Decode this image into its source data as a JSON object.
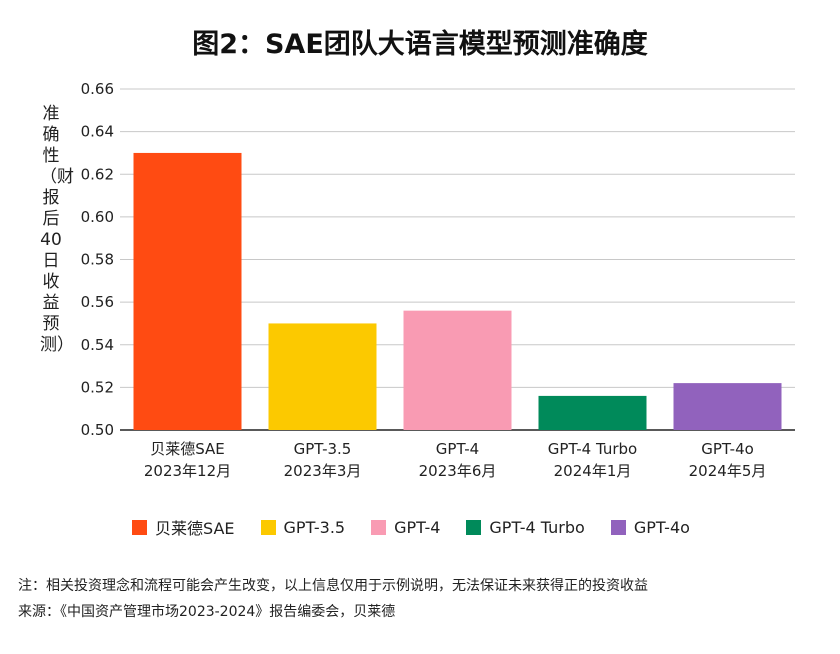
{
  "chart_data": {
    "type": "bar",
    "title": "图2：SAE团队大语言模型预测准确度",
    "ylabel": "准确性（财报后40日收益预测）",
    "xlabel": "",
    "ylim": [
      0.5,
      0.66
    ],
    "yticks": [
      "0.50",
      "0.52",
      "0.54",
      "0.56",
      "0.58",
      "0.60",
      "0.62",
      "0.64",
      "0.66"
    ],
    "grid": true,
    "legend_position": "bottom",
    "categories": [
      {
        "line1": "贝莱德SAE",
        "line2": "2023年12月"
      },
      {
        "line1": "GPT-3.5",
        "line2": "2023年3月"
      },
      {
        "line1": "GPT-4",
        "line2": "2023年6月"
      },
      {
        "line1": "GPT-4 Turbo",
        "line2": "2024年1月"
      },
      {
        "line1": "GPT-4o",
        "line2": "2024年5月"
      }
    ],
    "values": [
      0.63,
      0.55,
      0.556,
      0.516,
      0.522
    ],
    "colors": [
      "#ff4b12",
      "#fcc900",
      "#f99bb3",
      "#008a5a",
      "#9162bd"
    ],
    "legend": [
      "贝莱德SAE",
      "GPT-3.5",
      "GPT-4",
      "GPT-4 Turbo",
      "GPT-4o"
    ]
  },
  "footnotes": {
    "note": "注：相关投资理念和流程可能会产生改变，以上信息仅用于示例说明，无法保证未来获得正的投资收益",
    "source": "来源：《中国资产管理市场2023-2024》报告编委会，贝莱德"
  }
}
